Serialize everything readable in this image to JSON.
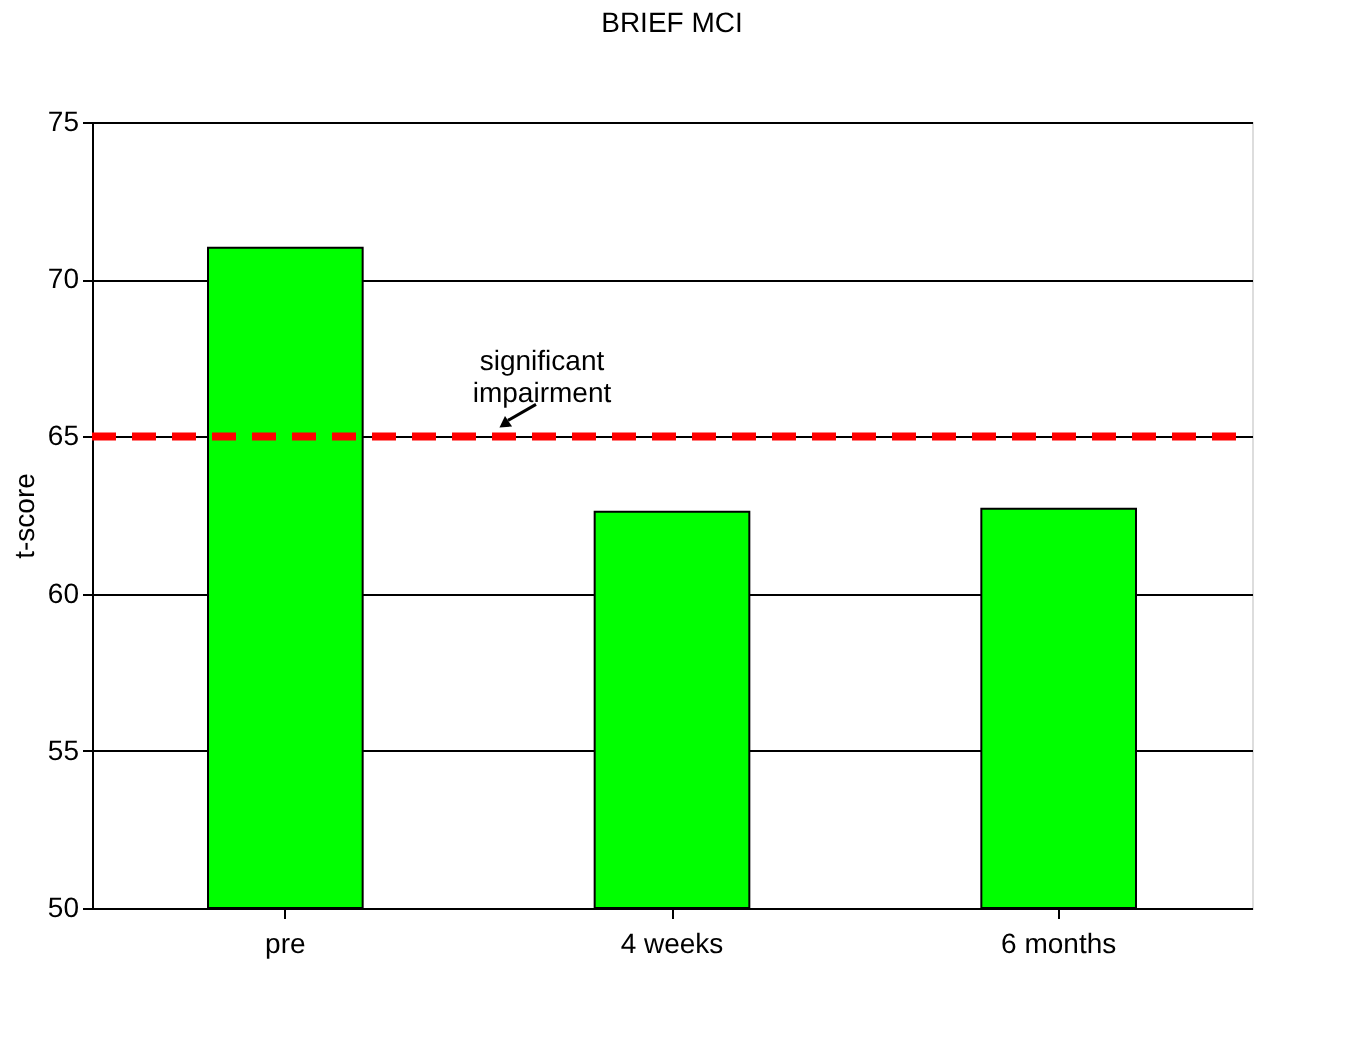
{
  "chart_data": {
    "type": "bar",
    "title": "BRIEF MCI",
    "ylabel": "t-score",
    "categories": [
      "pre",
      "4 weeks",
      "6 months"
    ],
    "series": [
      {
        "color": "#00ff00",
        "values": [
          71.0,
          62.6,
          62.7
        ]
      }
    ],
    "ylim": [
      50,
      75
    ],
    "yticks": [
      50,
      55,
      60,
      65,
      70,
      75
    ],
    "grid": "y",
    "ref_lines": [
      {
        "axis": "y",
        "value": 65,
        "label": "significant impairment",
        "color": "#ff0000",
        "line_style": "dashed"
      }
    ]
  }
}
